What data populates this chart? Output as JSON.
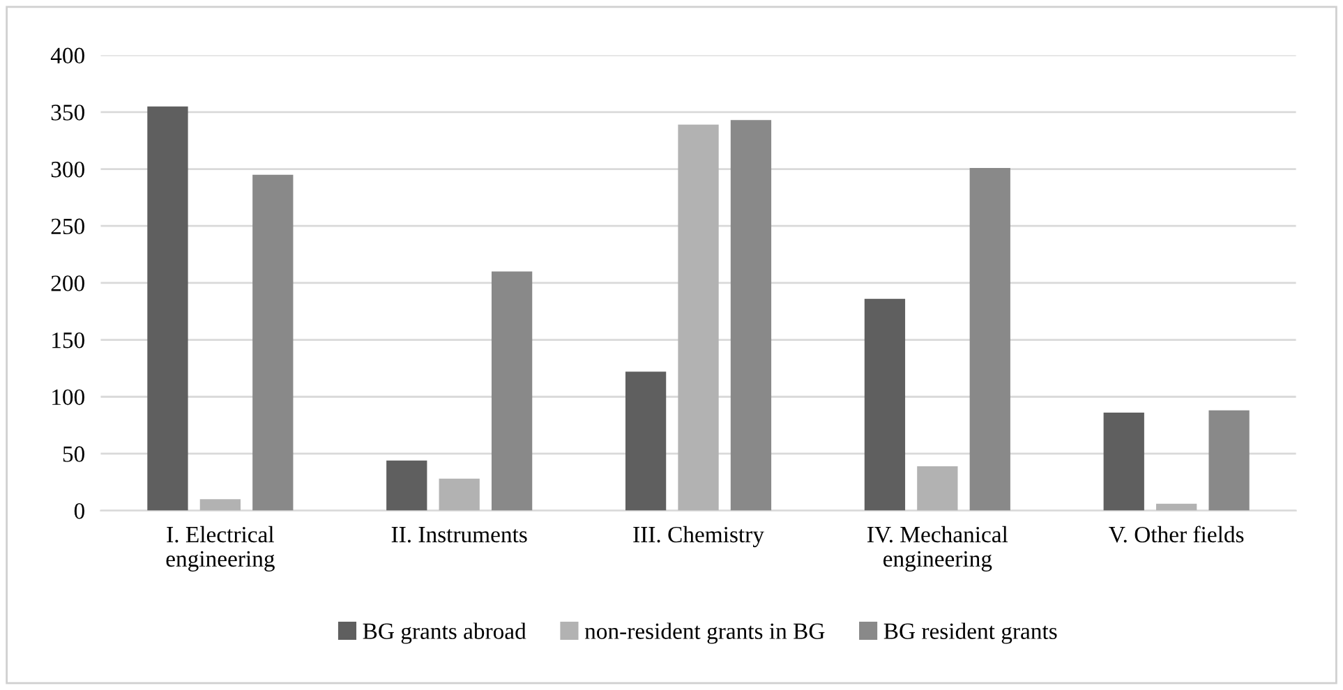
{
  "chart_data": {
    "type": "bar",
    "categories": [
      "I. Electrical\nengineering",
      "II. Instruments",
      "III. Chemistry",
      "IV. Mechanical\nengineering",
      "V. Other fields"
    ],
    "series": [
      {
        "name": "BG grants abroad",
        "color": "#5f5f5f",
        "values": [
          355,
          44,
          122,
          186,
          86
        ]
      },
      {
        "name": "non-resident grants in BG",
        "color": "#b2b2b2",
        "values": [
          10,
          28,
          339,
          39,
          6
        ]
      },
      {
        "name": "BG resident grants",
        "color": "#898989",
        "values": [
          295,
          210,
          343,
          301,
          88
        ]
      }
    ],
    "ylim": [
      0,
      400
    ],
    "yticks": [
      0,
      50,
      100,
      150,
      200,
      250,
      300,
      350,
      400
    ],
    "grid": "y",
    "legend": "bottom"
  }
}
